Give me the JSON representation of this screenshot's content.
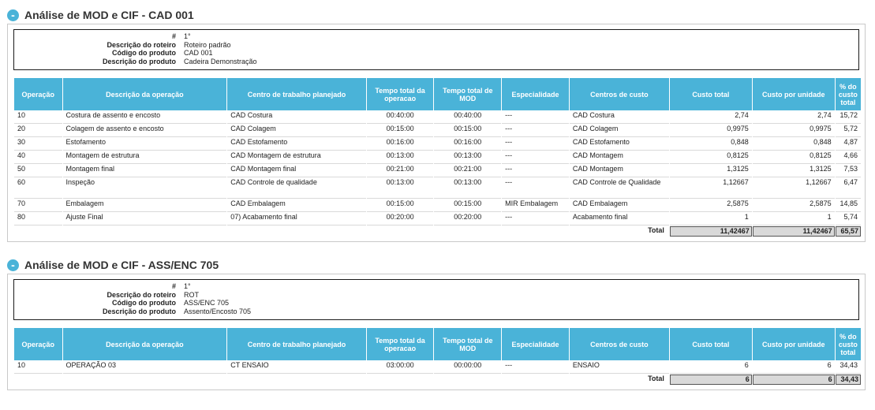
{
  "sections": [
    {
      "title": "Análise de MOD e CIF - CAD 001",
      "info": [
        {
          "label": "#",
          "value": "1°"
        },
        {
          "label": "Descrição do roteiro",
          "value": "Roteiro padrão"
        },
        {
          "label": "Código do produto",
          "value": "CAD 001"
        },
        {
          "label": "Descrição do produto",
          "value": "Cadeira Demonstração"
        }
      ],
      "rows": [
        {
          "op": "10",
          "desc": "Costura de assento e encosto",
          "ct": "CAD Costura",
          "t_op": "00:40:00",
          "t_mod": "00:40:00",
          "esp": "---",
          "cc": "CAD Costura",
          "custo": "2,74",
          "custo_un": "2,74",
          "pct": "15,72"
        },
        {
          "op": "20",
          "desc": "Colagem de assento e encosto",
          "ct": "CAD Colagem",
          "t_op": "00:15:00",
          "t_mod": "00:15:00",
          "esp": "---",
          "cc": "CAD Colagem",
          "custo": "0,9975",
          "custo_un": "0,9975",
          "pct": "5,72"
        },
        {
          "op": "30",
          "desc": "Estofamento",
          "ct": "CAD Estofamento",
          "t_op": "00:16:00",
          "t_mod": "00:16:00",
          "esp": "---",
          "cc": "CAD Estofamento",
          "custo": "0,848",
          "custo_un": "0,848",
          "pct": "4,87"
        },
        {
          "op": "40",
          "desc": "Montagem de estrutura",
          "ct": "CAD Montagem de estrutura",
          "t_op": "00:13:00",
          "t_mod": "00:13:00",
          "esp": "---",
          "cc": "CAD Montagem",
          "custo": "0,8125",
          "custo_un": "0,8125",
          "pct": "4,66"
        },
        {
          "op": "50",
          "desc": "Montagem final",
          "ct": "CAD Montagem final",
          "t_op": "00:21:00",
          "t_mod": "00:21:00",
          "esp": "---",
          "cc": "CAD Montagem",
          "custo": "1,3125",
          "custo_un": "1,3125",
          "pct": "7,53"
        },
        {
          "op": "60",
          "desc": "Inspeção",
          "ct": "CAD Controle de qualidade",
          "t_op": "00:13:00",
          "t_mod": "00:13:00",
          "esp": "---",
          "cc": "CAD Controle de Qualidade",
          "custo": "1,12667",
          "custo_un": "1,12667",
          "pct": "6,47"
        },
        {
          "op": "70",
          "desc": "Embalagem",
          "ct": "CAD Embalagem",
          "t_op": "00:15:00",
          "t_mod": "00:15:00",
          "esp": "MIR Embalagem",
          "cc": "CAD Embalagem",
          "custo": "2,5875",
          "custo_un": "2,5875",
          "pct": "14,85"
        },
        {
          "op": "80",
          "desc": "Ajuste Final",
          "ct": "07) Acabamento final",
          "t_op": "00:20:00",
          "t_mod": "00:20:00",
          "esp": "---",
          "cc": "Acabamento final",
          "custo": "1",
          "custo_un": "1",
          "pct": "5,74"
        }
      ],
      "total": {
        "label": "Total",
        "custo": "11,42467",
        "custo_un": "11,42467",
        "pct": "65,57"
      }
    },
    {
      "title": "Análise de MOD e CIF - ASS/ENC 705",
      "info": [
        {
          "label": "#",
          "value": "1°"
        },
        {
          "label": "Descrição do roteiro",
          "value": "ROT"
        },
        {
          "label": "Código do produto",
          "value": "ASS/ENC 705"
        },
        {
          "label": "Descrição do produto",
          "value": "Assento/Encosto 705"
        }
      ],
      "rows": [
        {
          "op": "10",
          "desc": "OPERAÇÃO 03",
          "ct": "CT ENSAIO",
          "t_op": "03:00:00",
          "t_mod": "00:00:00",
          "esp": "---",
          "cc": "ENSAIO",
          "custo": "6",
          "custo_un": "6",
          "pct": "34,43"
        }
      ],
      "total": {
        "label": "Total",
        "custo": "6",
        "custo_un": "6",
        "pct": "34,43"
      }
    }
  ],
  "columns": {
    "op": "Operação",
    "desc": "Descrição da operação",
    "ct": "Centro de trabalho planejado",
    "t_op": "Tempo total da operacao",
    "t_mod": "Tempo total de MOD",
    "esp": "Especialidade",
    "cc": "Centros de custo",
    "custo": "Custo total",
    "custo_un": "Custo por unidade",
    "pct": "% do custo total"
  },
  "toggle_glyph": "-",
  "colors": {
    "header_bg": "#4ab3d8",
    "total_bg": "#d9d9d9"
  }
}
